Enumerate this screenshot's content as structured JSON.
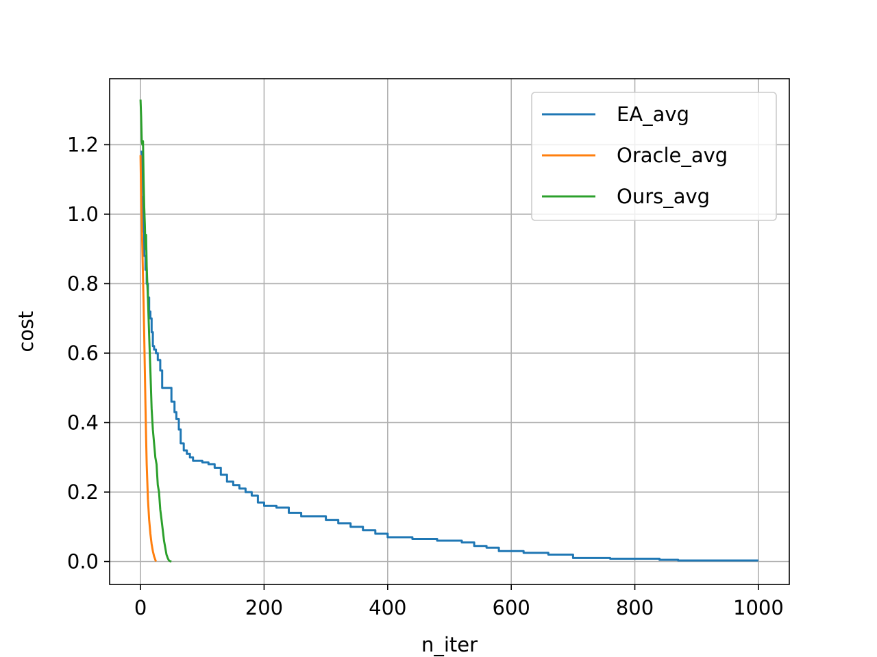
{
  "chart_data": {
    "type": "line",
    "title": "",
    "xlabel": "n_iter",
    "ylabel": "cost",
    "xlim": [
      -50,
      1050
    ],
    "ylim": [
      -0.066,
      1.39
    ],
    "x_ticks": [
      0,
      200,
      400,
      600,
      800,
      1000
    ],
    "x_tick_labels": [
      "0",
      "200",
      "400",
      "600",
      "800",
      "1000"
    ],
    "y_ticks": [
      0.0,
      0.2,
      0.4,
      0.6,
      0.8,
      1.0,
      1.2
    ],
    "y_tick_labels": [
      "0.0",
      "0.2",
      "0.4",
      "0.6",
      "0.8",
      "1.0",
      "1.2"
    ],
    "grid": true,
    "legend_position": "top-right",
    "series": [
      {
        "name": "EA_avg",
        "color": "#1f77b4",
        "step": true,
        "x": [
          0,
          2,
          4,
          6,
          8,
          10,
          12,
          14,
          16,
          18,
          20,
          22,
          25,
          28,
          32,
          35,
          40,
          50,
          55,
          58,
          62,
          65,
          70,
          75,
          80,
          85,
          90,
          100,
          110,
          120,
          130,
          140,
          150,
          160,
          170,
          180,
          190,
          200,
          220,
          240,
          260,
          280,
          300,
          320,
          340,
          360,
          380,
          400,
          440,
          480,
          520,
          540,
          560,
          580,
          620,
          660,
          700,
          760,
          840,
          870,
          1000
        ],
        "y": [
          1.18,
          1.05,
          0.95,
          0.88,
          0.84,
          0.8,
          0.76,
          0.72,
          0.7,
          0.66,
          0.62,
          0.61,
          0.6,
          0.58,
          0.55,
          0.5,
          0.5,
          0.46,
          0.43,
          0.41,
          0.38,
          0.34,
          0.32,
          0.31,
          0.3,
          0.29,
          0.29,
          0.285,
          0.28,
          0.27,
          0.25,
          0.23,
          0.22,
          0.21,
          0.2,
          0.19,
          0.17,
          0.16,
          0.155,
          0.14,
          0.13,
          0.13,
          0.12,
          0.11,
          0.1,
          0.09,
          0.08,
          0.07,
          0.065,
          0.06,
          0.055,
          0.045,
          0.04,
          0.03,
          0.025,
          0.02,
          0.01,
          0.008,
          0.005,
          0.003,
          0.003
        ]
      },
      {
        "name": "Oracle_avg",
        "color": "#ff7f0e",
        "step": false,
        "x": [
          0,
          1,
          2,
          3,
          4,
          5,
          6,
          7,
          8,
          9,
          10,
          12,
          14,
          16,
          18,
          20,
          22,
          24,
          25
        ],
        "y": [
          1.17,
          1.05,
          0.98,
          0.9,
          0.82,
          0.74,
          0.65,
          0.55,
          0.45,
          0.36,
          0.28,
          0.18,
          0.12,
          0.08,
          0.05,
          0.03,
          0.015,
          0.005,
          0.0
        ]
      },
      {
        "name": "Ours_avg",
        "color": "#2ca02c",
        "step": false,
        "x": [
          0,
          1,
          2,
          3,
          4,
          5,
          6,
          7,
          8,
          9,
          10,
          11,
          12,
          14,
          16,
          18,
          20,
          22,
          24,
          26,
          28,
          30,
          32,
          34,
          36,
          38,
          40,
          42,
          44,
          46,
          48,
          50
        ],
        "y": [
          1.33,
          1.28,
          1.21,
          1.2,
          1.21,
          1.1,
          1.02,
          0.97,
          0.9,
          0.94,
          0.85,
          0.8,
          0.76,
          0.65,
          0.55,
          0.44,
          0.38,
          0.34,
          0.3,
          0.28,
          0.22,
          0.2,
          0.15,
          0.12,
          0.09,
          0.06,
          0.04,
          0.02,
          0.01,
          0.003,
          0.001,
          0.0
        ]
      }
    ]
  }
}
